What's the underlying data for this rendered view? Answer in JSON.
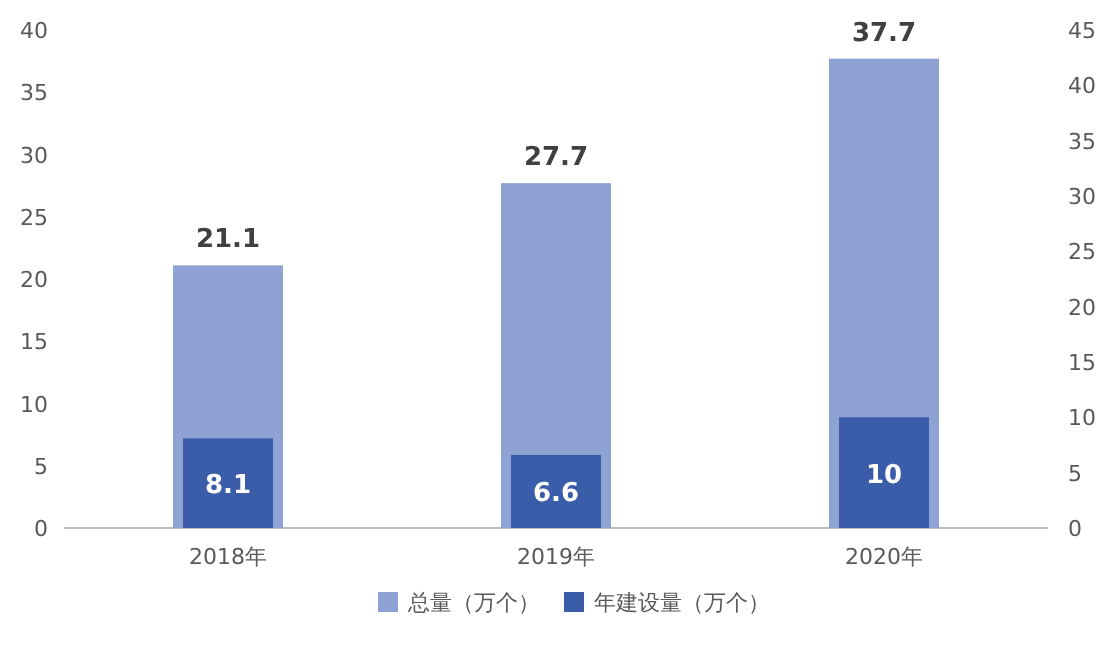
{
  "chart_data": {
    "type": "bar",
    "categories": [
      "2018年",
      "2019年",
      "2020年"
    ],
    "series": [
      {
        "name": "总量（万个）",
        "color": "#8fa2d4",
        "values": [
          21.1,
          27.7,
          37.7
        ]
      },
      {
        "name": "年建设量（万个）",
        "color": "#3b5ca8",
        "values": [
          8.1,
          6.6,
          10
        ],
        "axis": "y2"
      }
    ],
    "ylim": [
      0,
      40
    ],
    "yticks": [
      0,
      5,
      10,
      15,
      20,
      25,
      30,
      35,
      40
    ],
    "y2lim": [
      0,
      45
    ],
    "y2ticks": [
      0,
      5,
      10,
      15,
      20,
      25,
      30,
      35,
      40,
      45
    ],
    "data_labels": true,
    "legend": "bottom",
    "grid": false
  }
}
